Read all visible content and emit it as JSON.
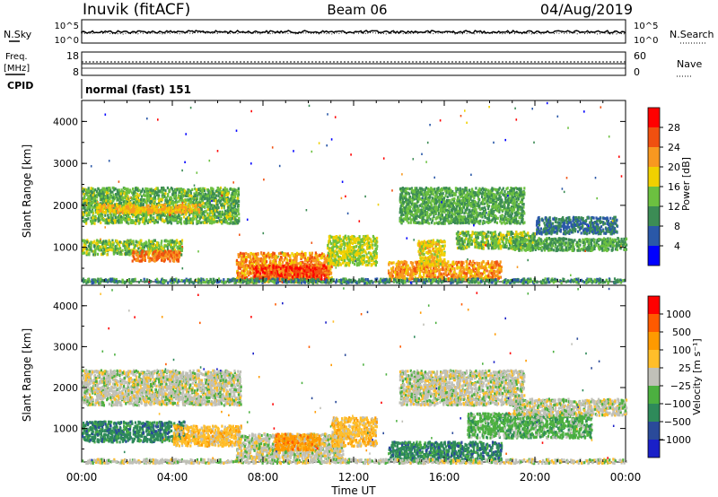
{
  "header": {
    "station": "Inuvik (fitACF)",
    "beam": "Beam 06",
    "date": "04/Aug/2019"
  },
  "strip_panels": {
    "nsky": {
      "label": "N.Sky",
      "ticks": [
        "10^5",
        "10^0"
      ],
      "right_label": "N.Search",
      "right_ticks": [
        "10^5",
        "10^0"
      ]
    },
    "freq": {
      "label_line1": "Freq.",
      "label_line2": "[MHz]",
      "ticks": [
        "18",
        "8"
      ],
      "right_label": "Nave",
      "right_ticks": [
        "60",
        "0"
      ]
    },
    "cpid": {
      "label": "CPID",
      "mode_text": "normal (fast) 151"
    }
  },
  "colors": {
    "power": [
      "#0000ff",
      "#2a58a8",
      "#3c8c55",
      "#6cc040",
      "#f0d000",
      "#f89820",
      "#f05010",
      "#ff0000"
    ],
    "velocity": [
      "#ff0000",
      "#ff5a00",
      "#ff9a00",
      "#ffbe2a",
      "#c0c0b8",
      "#4cb040",
      "#2e8a5a",
      "#2a4a9a",
      "#1a20c8"
    ]
  },
  "chart_data": [
    {
      "type": "heatmap",
      "title": "",
      "xlabel": "Time UT",
      "ylabel": "Slant Range [km]",
      "x_ticks": [
        "00:00",
        "04:00",
        "08:00",
        "12:00",
        "16:00",
        "20:00",
        "00:00"
      ],
      "y_ticks": [
        "1000",
        "2000",
        "3000",
        "4000"
      ],
      "xlim": [
        0,
        24
      ],
      "ylim": [
        180,
        4500
      ],
      "colorbar": {
        "label": "Power [dB]",
        "ticks": [
          "4",
          "8",
          "12",
          "16",
          "20",
          "24",
          "28"
        ]
      },
      "bands": [
        {
          "t0": 0.0,
          "t1": 6.9,
          "r0": 1600,
          "r1": 2450,
          "v": 13
        },
        {
          "t0": 0.6,
          "t1": 5.2,
          "r0": 1850,
          "r1": 2050,
          "v": 20
        },
        {
          "t0": 0.0,
          "t1": 4.4,
          "r0": 850,
          "r1": 1200,
          "v": 14
        },
        {
          "t0": 2.2,
          "t1": 4.3,
          "r0": 700,
          "r1": 950,
          "v": 24
        },
        {
          "t0": 6.8,
          "t1": 11.0,
          "r0": 200,
          "r1": 900,
          "v": 22
        },
        {
          "t0": 7.5,
          "t1": 10.8,
          "r0": 250,
          "r1": 600,
          "v": 27
        },
        {
          "t0": 10.8,
          "t1": 13.0,
          "r0": 600,
          "r1": 1300,
          "v": 16
        },
        {
          "t0": 13.5,
          "t1": 18.5,
          "r0": 250,
          "r1": 700,
          "v": 22
        },
        {
          "t0": 14.8,
          "t1": 16.0,
          "r0": 600,
          "r1": 1200,
          "v": 18
        },
        {
          "t0": 14.0,
          "t1": 19.5,
          "r0": 1600,
          "r1": 2450,
          "v": 12
        },
        {
          "t0": 16.5,
          "t1": 20.0,
          "r0": 1000,
          "r1": 1400,
          "v": 14
        },
        {
          "t0": 19.0,
          "t1": 24.0,
          "r0": 950,
          "r1": 1250,
          "v": 12
        },
        {
          "t0": 20.0,
          "t1": 23.6,
          "r0": 1350,
          "r1": 1750,
          "v": 8
        },
        {
          "t0": 0.0,
          "t1": 24.0,
          "r0": 180,
          "r1": 280,
          "v": 10
        }
      ]
    },
    {
      "type": "heatmap",
      "title": "",
      "xlabel": "Time UT",
      "ylabel": "Slant Range [km]",
      "x_ticks": [
        "00:00",
        "04:00",
        "08:00",
        "12:00",
        "16:00",
        "20:00",
        "00:00"
      ],
      "y_ticks": [
        "1000",
        "2000",
        "3000",
        "4000"
      ],
      "xlim": [
        0,
        24
      ],
      "ylim": [
        180,
        4500
      ],
      "colorbar": {
        "label": "Velocity [m s⁻¹]",
        "ticks": [
          "1000",
          "500",
          "100",
          "25",
          "−25",
          "−100",
          "−500",
          "−1000"
        ]
      },
      "bands": [
        {
          "t0": 0.0,
          "t1": 7.0,
          "r0": 1600,
          "r1": 2450,
          "v": 4
        },
        {
          "t0": 0.0,
          "t1": 4.5,
          "r0": 700,
          "r1": 1200,
          "v": 2
        },
        {
          "t0": 4.0,
          "t1": 7.0,
          "r0": 600,
          "r1": 1100,
          "v": 5
        },
        {
          "t0": 6.8,
          "t1": 11.5,
          "r0": 300,
          "r1": 900,
          "v": 4
        },
        {
          "t0": 8.5,
          "t1": 10.5,
          "r0": 500,
          "r1": 900,
          "v": 6
        },
        {
          "t0": 11.0,
          "t1": 13.0,
          "r0": 600,
          "r1": 1300,
          "v": 5
        },
        {
          "t0": 13.5,
          "t1": 18.5,
          "r0": 250,
          "r1": 700,
          "v": 2
        },
        {
          "t0": 14.0,
          "t1": 19.5,
          "r0": 1600,
          "r1": 2450,
          "v": 4
        },
        {
          "t0": 17.0,
          "t1": 22.5,
          "r0": 800,
          "r1": 1400,
          "v": 3
        },
        {
          "t0": 19.0,
          "t1": 24.0,
          "r0": 1350,
          "r1": 1750,
          "v": 4
        },
        {
          "t0": 0.0,
          "t1": 24.0,
          "r0": 180,
          "r1": 280,
          "v": 4
        }
      ]
    }
  ]
}
